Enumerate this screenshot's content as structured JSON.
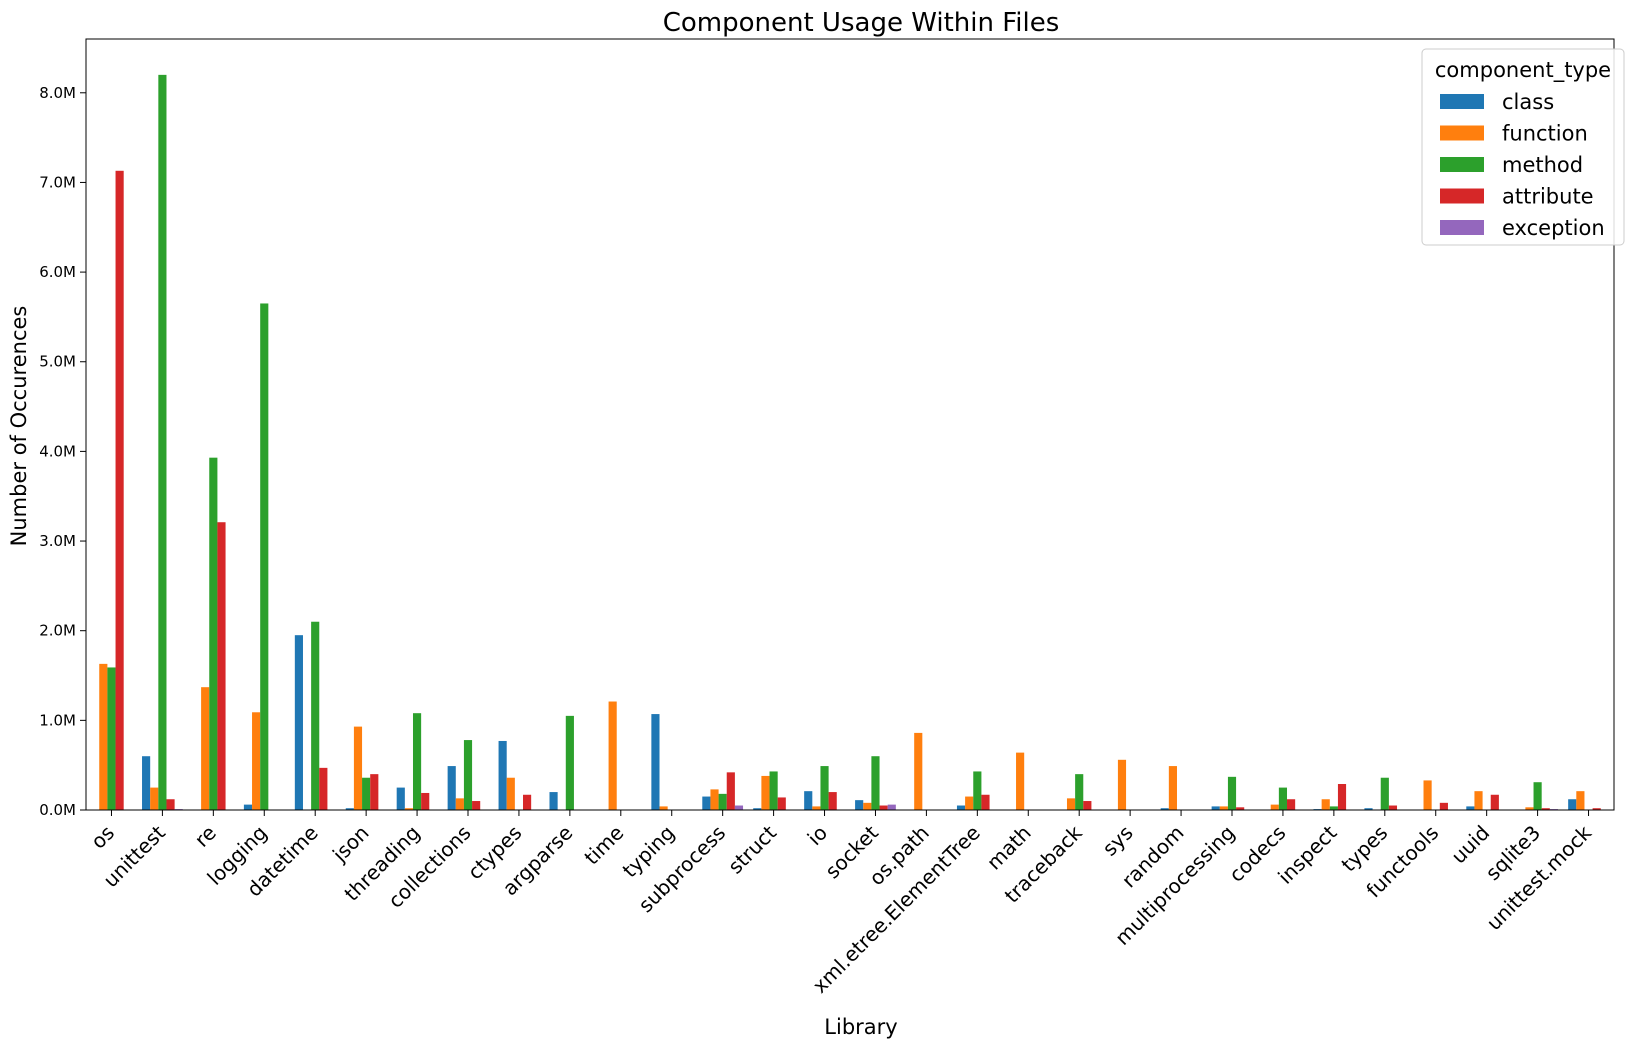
{
  "chart_data": {
    "type": "bar",
    "title": "Component Usage Within Files",
    "xlabel": "Library",
    "ylabel": "Number of Occurences",
    "ylim": [
      0,
      8600000
    ],
    "yticks": [
      0,
      1000000,
      2000000,
      3000000,
      4000000,
      5000000,
      6000000,
      7000000,
      8000000
    ],
    "ytick_labels": [
      "0.0M",
      "1.0M",
      "2.0M",
      "3.0M",
      "4.0M",
      "5.0M",
      "6.0M",
      "7.0M",
      "8.0M"
    ],
    "grid": false,
    "legend": {
      "title": "component_type",
      "placement": "top-right"
    },
    "categories": [
      "os",
      "unittest",
      "re",
      "logging",
      "datetime",
      "json",
      "threading",
      "collections",
      "ctypes",
      "argparse",
      "time",
      "typing",
      "subprocess",
      "struct",
      "io",
      "socket",
      "os.path",
      "xml.etree.ElementTree",
      "math",
      "traceback",
      "sys",
      "random",
      "multiprocessing",
      "codecs",
      "inspect",
      "types",
      "functools",
      "uuid",
      "sqlite3",
      "unittest.mock"
    ],
    "series": [
      {
        "name": "class",
        "color": "#1f77b4",
        "values": [
          0,
          600000,
          0,
          60000,
          1950000,
          20000,
          250000,
          490000,
          770000,
          200000,
          0,
          1070000,
          150000,
          20000,
          210000,
          110000,
          0,
          50000,
          0,
          0,
          0,
          20000,
          40000,
          0,
          10000,
          20000,
          0,
          40000,
          0,
          120000
        ]
      },
      {
        "name": "function",
        "color": "#ff7f0e",
        "values": [
          1630000,
          250000,
          1370000,
          1090000,
          0,
          930000,
          20000,
          130000,
          360000,
          0,
          1210000,
          40000,
          230000,
          380000,
          40000,
          80000,
          860000,
          150000,
          640000,
          130000,
          560000,
          490000,
          40000,
          60000,
          120000,
          0,
          330000,
          210000,
          30000,
          210000
        ]
      },
      {
        "name": "method",
        "color": "#2ca02c",
        "values": [
          1590000,
          8200000,
          3930000,
          5650000,
          2100000,
          360000,
          1080000,
          780000,
          0,
          1050000,
          0,
          0,
          180000,
          430000,
          490000,
          600000,
          0,
          430000,
          0,
          400000,
          0,
          0,
          370000,
          250000,
          40000,
          360000,
          0,
          0,
          310000,
          0
        ]
      },
      {
        "name": "attribute",
        "color": "#d62728",
        "values": [
          7130000,
          120000,
          3210000,
          0,
          470000,
          400000,
          190000,
          100000,
          170000,
          0,
          0,
          0,
          420000,
          140000,
          200000,
          50000,
          0,
          170000,
          0,
          100000,
          0,
          0,
          30000,
          120000,
          290000,
          50000,
          80000,
          170000,
          20000,
          20000
        ]
      },
      {
        "name": "exception",
        "color": "#9467bd",
        "values": [
          0,
          10000,
          0,
          0,
          0,
          0,
          0,
          0,
          0,
          0,
          0,
          0,
          50000,
          0,
          0,
          60000,
          0,
          0,
          0,
          0,
          0,
          0,
          0,
          0,
          0,
          0,
          0,
          0,
          10000,
          0
        ]
      }
    ]
  }
}
